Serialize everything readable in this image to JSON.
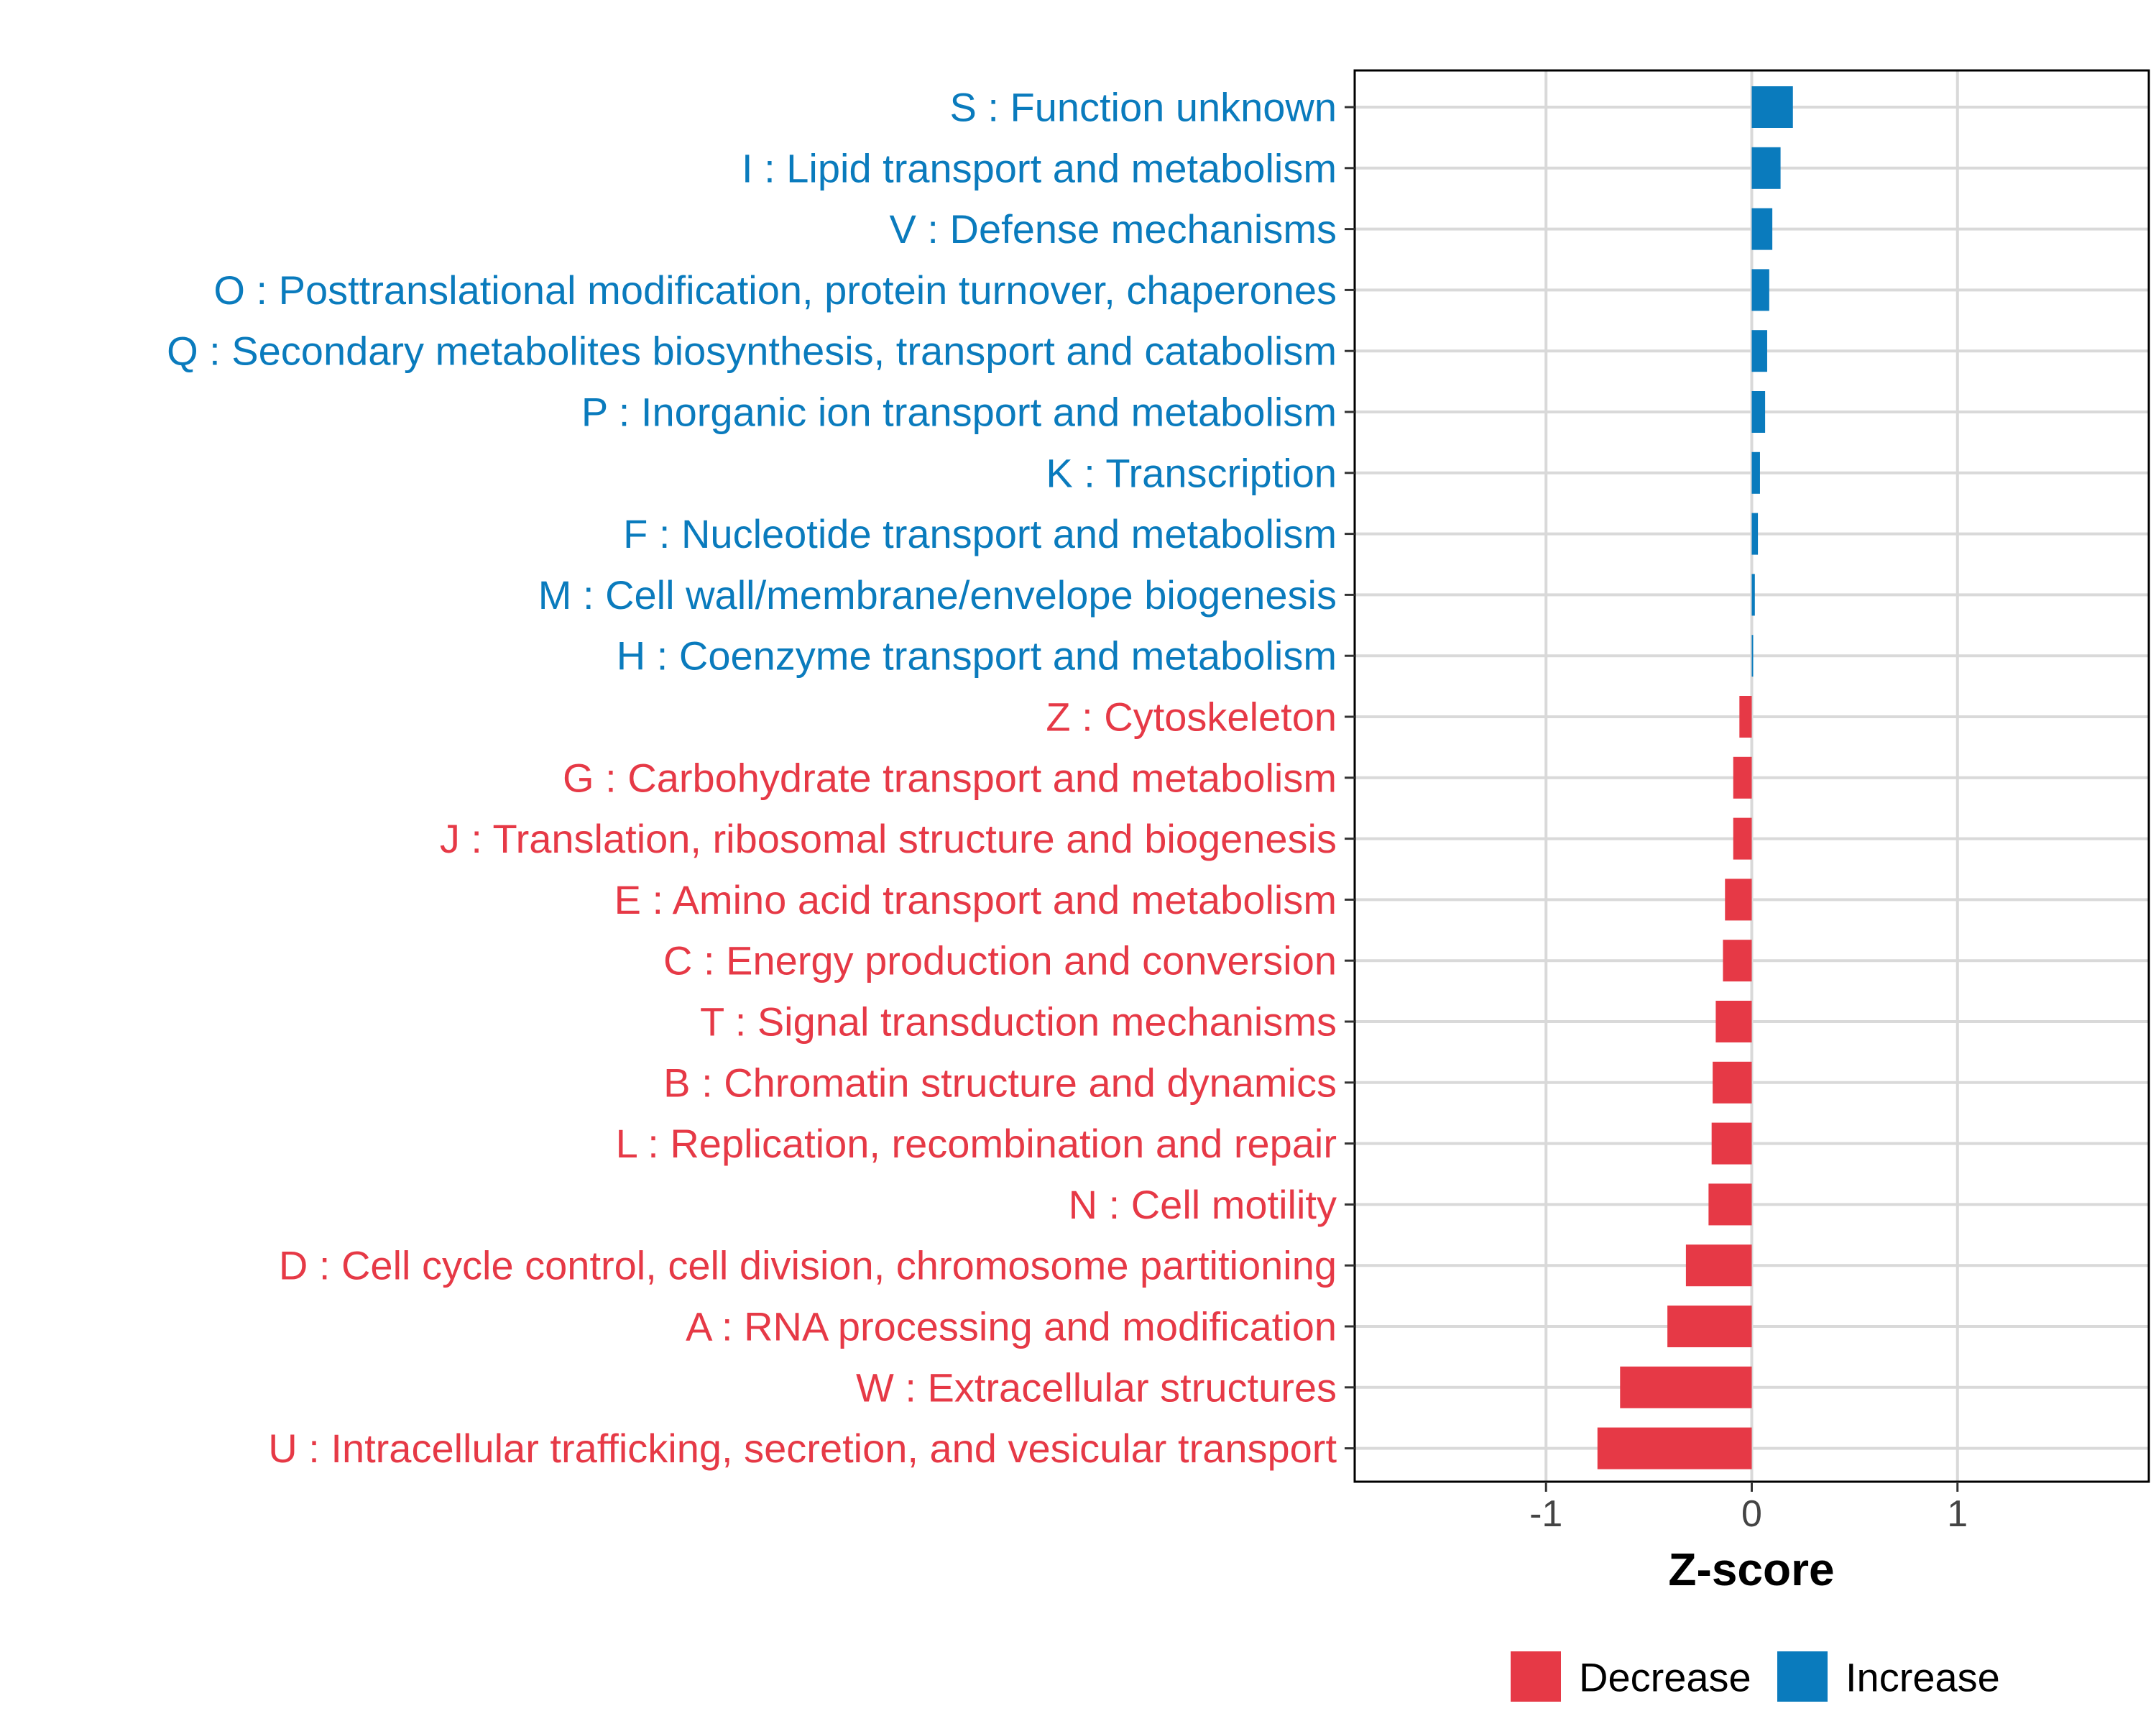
{
  "chart_data": {
    "type": "bar",
    "orientation": "horizontal",
    "title": "",
    "xlabel": "Z-score",
    "ylabel": "",
    "xlim": [
      -1.93,
      1.93
    ],
    "xticks": [
      -1,
      0,
      1
    ],
    "xtick_labels": [
      "-1",
      "0",
      "1"
    ],
    "grid": true,
    "legend_position": "bottom",
    "colors": {
      "Decrease": "#e63946",
      "Increase": "#0a7bbd"
    },
    "categories": [
      "S : Function unknown",
      "I : Lipid transport and metabolism",
      "V : Defense mechanisms",
      "O : Posttranslational modification, protein turnover, chaperones",
      "Q : Secondary metabolites biosynthesis, transport and catabolism",
      "P : Inorganic ion transport and metabolism",
      "K : Transcription",
      "F : Nucleotide transport and metabolism",
      "M : Cell wall/membrane/envelope biogenesis",
      "H : Coenzyme transport and metabolism",
      "Z : Cytoskeleton",
      "G : Carbohydrate transport and metabolism",
      "J : Translation, ribosomal structure and biogenesis",
      "E : Amino acid transport and metabolism",
      "C : Energy production and conversion",
      "T : Signal transduction mechanisms",
      "B : Chromatin structure and dynamics",
      "L : Replication, recombination and repair",
      "N : Cell motility",
      "D : Cell cycle control, cell division, chromosome partitioning",
      "A : RNA processing and modification",
      "W : Extracellular structures",
      "U : Intracellular trafficking, secretion, and vesicular transport"
    ],
    "values": [
      0.2,
      0.14,
      0.1,
      0.085,
      0.075,
      0.065,
      0.04,
      0.03,
      0.015,
      0.005,
      -0.06,
      -0.09,
      -0.09,
      -0.13,
      -0.14,
      -0.175,
      -0.19,
      -0.195,
      -0.21,
      -0.32,
      -0.41,
      -0.64,
      -0.75
    ],
    "groups": [
      "Increase",
      "Increase",
      "Increase",
      "Increase",
      "Increase",
      "Increase",
      "Increase",
      "Increase",
      "Increase",
      "Increase",
      "Decrease",
      "Decrease",
      "Decrease",
      "Decrease",
      "Decrease",
      "Decrease",
      "Decrease",
      "Decrease",
      "Decrease",
      "Decrease",
      "Decrease",
      "Decrease",
      "Decrease"
    ],
    "legend": [
      "Decrease",
      "Increase"
    ]
  }
}
